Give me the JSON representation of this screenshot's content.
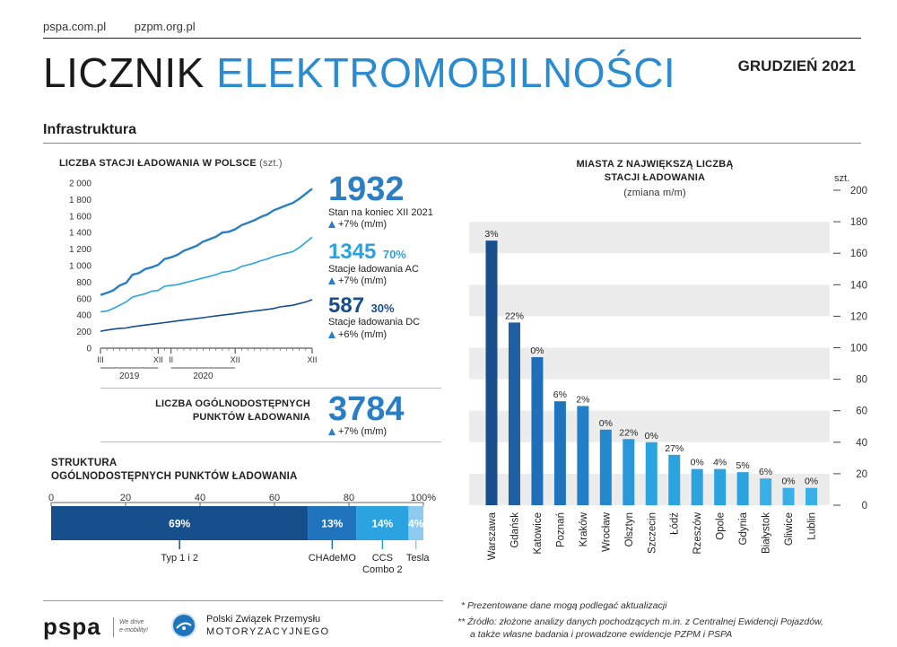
{
  "header": {
    "links": [
      "pspa.com.pl",
      "pzpm.org.pl"
    ],
    "title_part1": "LICZNIK",
    "title_part2": "ELEKTROMOBILNOŚCI",
    "date": "GRUDZIEŃ 2021",
    "section": "Infrastruktura"
  },
  "stations": {
    "title": "LICZBA STACJI ŁADOWANIA W POLSCE",
    "unit": "(szt.)",
    "total_value": "1932",
    "total_label": "Stan na koniec XII 2021",
    "total_change": "+7% (m/m)",
    "ac_value": "1345",
    "ac_share": "70%",
    "ac_label": "Stacje ładowania AC",
    "ac_change": "+7% (m/m)",
    "dc_value": "587",
    "dc_share": "30%",
    "dc_label": "Stacje ładowania DC",
    "dc_change": "+6% (m/m)"
  },
  "points": {
    "title_line1": "LICZBA OGÓLNODOSTĘPNYCH",
    "title_line2": "PUNKTÓW ŁADOWANIA",
    "value": "3784",
    "change": "+7% (m/m)"
  },
  "structure": {
    "title_line1": "STRUKTURA",
    "title_line2": "OGÓLNODOSTĘPNYCH PUNKTÓW ŁADOWANIA",
    "axis_ticks": [
      "0",
      "20",
      "40",
      "60",
      "80",
      "100%"
    ],
    "segments": [
      {
        "label": "69%",
        "value": 69,
        "name": "Typ 1 i 2",
        "color": "#164f8c"
      },
      {
        "label": "13%",
        "value": 13,
        "name": "CHAdeMO",
        "color": "#1f74bd"
      },
      {
        "label": "14%",
        "value": 14,
        "name": "CCS Combo 2",
        "color": "#2aa3e0"
      },
      {
        "label": "4%",
        "value": 4,
        "name": "Tesla",
        "color": "#8ccbef"
      }
    ],
    "ccs_line1": "CCS",
    "ccs_line2": "Combo 2"
  },
  "cities": {
    "title_line1": "MIASTA Z NAJWIĘKSZĄ LICZBĄ",
    "title_line2": "STACJI ŁADOWANIA",
    "subtitle": "(zmiana m/m)",
    "unit": "szt."
  },
  "footer": {
    "note1": "* Prezentowane dane mogą podlegać aktualizacji",
    "note2": "** Źródło: złożone analizy danych pochodzących m.in. z Centralnej Ewidencji Pojazdów,",
    "note3": "a także własne badania i prowadzone ewidencje PZPM i PSPA",
    "pspa_logo": "pspa",
    "pspa_tag1": "We drive",
    "pspa_tag2": "e-mobility!",
    "pzpm_line1": "Polski Związek Przemysłu",
    "pzpm_line2": "MOTORYZACYJNEGO"
  },
  "colors": {
    "accent": "#2a8bd0",
    "dark_blue": "#164f8c",
    "mid_blue": "#1f74bd",
    "light_blue": "#2aa3e0",
    "pale_blue": "#8ccbef",
    "grid_band": "#ececec"
  },
  "chart_data": [
    {
      "type": "line",
      "title": "LICZBA STACJI ŁADOWANIA W POLSCE (szt.)",
      "ylim": [
        0,
        2000
      ],
      "yticks": [
        "0",
        "200",
        "400",
        "600",
        "800",
        "1 000",
        "1 200",
        "1 400",
        "1 600",
        "1 800",
        "2 000"
      ],
      "ytick_values": [
        0,
        200,
        400,
        600,
        800,
        1000,
        1200,
        1400,
        1600,
        1800,
        2000
      ],
      "x_tick_labels": [
        "III",
        "XII",
        "II",
        "XII",
        "XII"
      ],
      "x_tick_index": [
        0,
        9,
        11,
        21,
        33
      ],
      "year_labels": [
        "2019",
        "2020"
      ],
      "series": [
        {
          "color": "#2a7fc4",
          "values": [
            645,
            670,
            700,
            760,
            790,
            890,
            910,
            960,
            980,
            1010,
            1080,
            1100,
            1130,
            1180,
            1210,
            1240,
            1290,
            1320,
            1350,
            1400,
            1410,
            1440,
            1490,
            1520,
            1550,
            1590,
            1620,
            1670,
            1700,
            1730,
            1760,
            1810,
            1870,
            1932
          ]
        },
        {
          "color": "#2aa3e0",
          "values": [
            440,
            450,
            480,
            520,
            560,
            620,
            640,
            660,
            690,
            700,
            750,
            760,
            770,
            790,
            810,
            830,
            850,
            870,
            890,
            920,
            930,
            950,
            990,
            1010,
            1030,
            1060,
            1080,
            1110,
            1130,
            1150,
            1170,
            1220,
            1280,
            1345
          ]
        },
        {
          "color": "#164f8c",
          "values": [
            205,
            220,
            230,
            240,
            245,
            260,
            270,
            280,
            290,
            300,
            310,
            320,
            330,
            340,
            350,
            360,
            370,
            380,
            390,
            400,
            410,
            420,
            430,
            440,
            450,
            460,
            470,
            480,
            500,
            510,
            520,
            540,
            560,
            587
          ]
        }
      ]
    },
    {
      "type": "bar",
      "title": "MIASTA Z NAJWIĘKSZĄ LICZBĄ STACJI ŁADOWANIA",
      "subtitle": "(zmiana m/m)",
      "ylabel": "szt.",
      "ylim": [
        0,
        200
      ],
      "yticks": [
        "0",
        "20",
        "40",
        "60",
        "80",
        "100",
        "120",
        "140",
        "160",
        "180",
        "200"
      ],
      "ytick_values": [
        0,
        20,
        40,
        60,
        80,
        100,
        120,
        140,
        160,
        180,
        200
      ],
      "categories": [
        "Warszawa",
        "Gdańsk",
        "Katowice",
        "Poznań",
        "Kraków",
        "Wrocław",
        "Olsztyn",
        "Szczecin",
        "Łódź",
        "Rzeszów",
        "Opole",
        "Gdynia",
        "Białystok",
        "Gliwice",
        "Lublin"
      ],
      "values": [
        168,
        116,
        94,
        66,
        63,
        48,
        42,
        40,
        32,
        23,
        23,
        21,
        17,
        11,
        11
      ],
      "changes": [
        "3%",
        "22%",
        "0%",
        "6%",
        "2%",
        "0%",
        "22%",
        "0%",
        "27%",
        "0%",
        "4%",
        "5%",
        "6%",
        "0%",
        "0%"
      ],
      "colors": [
        "#164f8c",
        "#1f5fa3",
        "#1f6fb8",
        "#1f74bd",
        "#2280c8",
        "#2488cc",
        "#2a98d8",
        "#2aa3e0",
        "#2aa3e0",
        "#2aa3e0",
        "#2aa3e0",
        "#2aa3e0",
        "#3ab0e8",
        "#3ab0e8",
        "#3ab0e8"
      ]
    }
  ]
}
